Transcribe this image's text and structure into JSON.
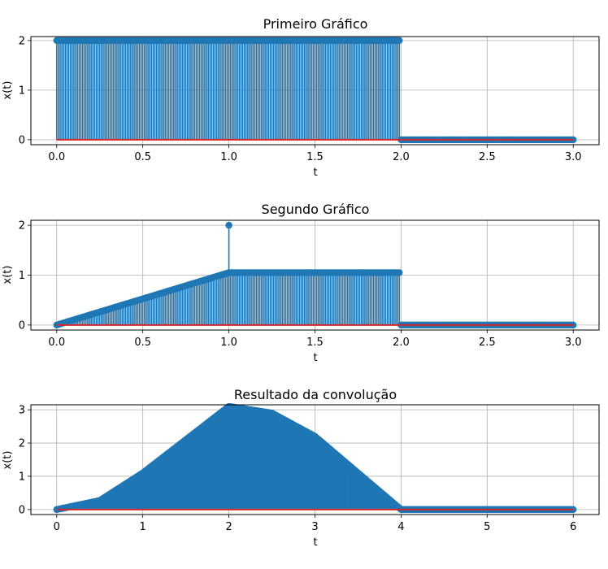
{
  "chart_data": [
    {
      "type": "stem",
      "title": "Primeiro Gráfico",
      "xlabel": "t",
      "ylabel": "x(t)",
      "xlim": [
        -0.15,
        3.15
      ],
      "ylim": [
        -0.1,
        2.08
      ],
      "xticks": [
        0,
        0.5,
        1,
        1.5,
        2,
        2.5,
        3
      ],
      "xticklabels": [
        "0.0",
        "0.5",
        "1.0",
        "1.5",
        "2.0",
        "2.5",
        "3.0"
      ],
      "yticks": [
        0,
        1,
        2
      ],
      "yticklabels": [
        "0",
        "1",
        "2"
      ],
      "grid": true,
      "series": [
        {
          "signal": "rect",
          "x_start": 0,
          "x_end": 3,
          "samples": 301,
          "segments": [
            {
              "x_from": 0,
              "x_to": 2,
              "value": 2
            },
            {
              "x_from": 2,
              "x_to": 3,
              "value": 0
            }
          ],
          "stem_color": "#1f77b4",
          "baseline_color": "#d62728"
        }
      ]
    },
    {
      "type": "stem",
      "title": "Segundo Gráfico",
      "xlabel": "t",
      "ylabel": "x(t)",
      "xlim": [
        -0.15,
        3.15
      ],
      "ylim": [
        -0.1,
        2.1
      ],
      "xticks": [
        0,
        0.5,
        1,
        1.5,
        2,
        2.5,
        3
      ],
      "xticklabels": [
        "0.0",
        "0.5",
        "1.0",
        "1.5",
        "2.0",
        "2.5",
        "3.0"
      ],
      "yticks": [
        0,
        1,
        2
      ],
      "yticklabels": [
        "0",
        "1",
        "2"
      ],
      "grid": true,
      "series": [
        {
          "signal": "ramp-then-step",
          "x_start": 0,
          "x_end": 3,
          "samples": 301,
          "segments": [
            {
              "x_from": 0,
              "x_to": 1,
              "value_from": 0,
              "value_to": 1.05
            },
            {
              "x_from": 1,
              "x_to": 2,
              "value_from": 1.05,
              "value_to": 1.05
            },
            {
              "x_from": 2,
              "x_to": 3,
              "value_from": 0,
              "value_to": 0
            }
          ],
          "impulses": [
            {
              "x": 1,
              "y": 2
            }
          ],
          "stem_color": "#1f77b4",
          "baseline_color": "#d62728"
        }
      ]
    },
    {
      "type": "stem",
      "title": "Resultado da convolução",
      "xlabel": "t",
      "ylabel": "x(t)",
      "xlim": [
        -0.3,
        6.3
      ],
      "ylim": [
        -0.15,
        3.15
      ],
      "xticks": [
        0,
        1,
        2,
        3,
        4,
        5,
        6
      ],
      "xticklabels": [
        "0",
        "1",
        "2",
        "3",
        "4",
        "5",
        "6"
      ],
      "yticks": [
        0,
        1,
        2,
        3
      ],
      "yticklabels": [
        "0",
        "1",
        "2",
        "3"
      ],
      "grid": true,
      "series": [
        {
          "signal": "convolution",
          "x_start": 0,
          "x_end": 6,
          "samples": 601,
          "keypoints": [
            {
              "x": 0,
              "y": 0
            },
            {
              "x": 0.5,
              "y": 0.27
            },
            {
              "x": 1,
              "y": 1.1
            },
            {
              "x": 1.5,
              "y": 2.1
            },
            {
              "x": 2,
              "y": 3.1
            },
            {
              "x": 2.5,
              "y": 2.9
            },
            {
              "x": 3,
              "y": 2.2
            },
            {
              "x": 3.5,
              "y": 1.1
            },
            {
              "x": 4,
              "y": 0
            },
            {
              "x": 6,
              "y": 0
            }
          ],
          "stem_color": "#1f77b4",
          "baseline_color": "#d62728"
        }
      ]
    }
  ]
}
